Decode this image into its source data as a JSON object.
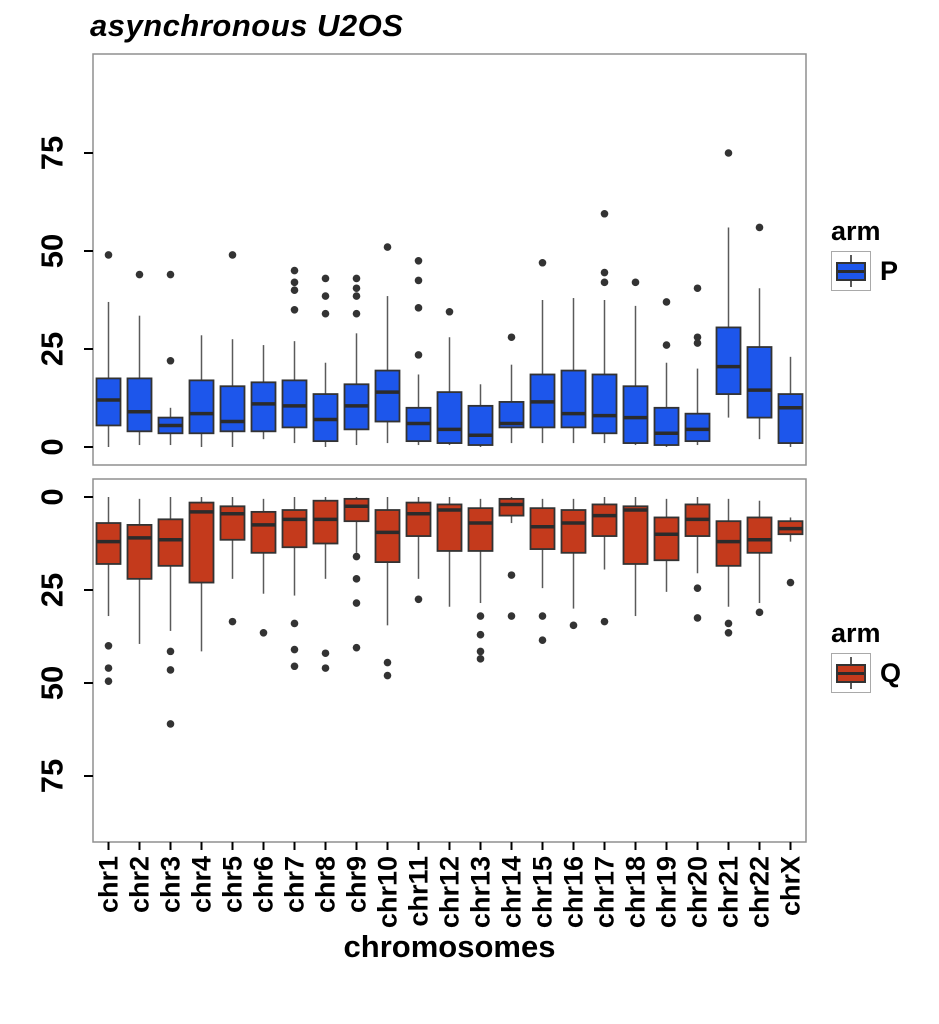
{
  "title": "asynchronous U2OS",
  "x_axis": {
    "label": "chromosomes",
    "categories": [
      "chr1",
      "chr2",
      "chr3",
      "chr4",
      "chr5",
      "chr6",
      "chr7",
      "chr8",
      "chr9",
      "chr10",
      "chr11",
      "chr12",
      "chr13",
      "chr14",
      "chr15",
      "chr16",
      "chr17",
      "chr18",
      "chr19",
      "chr20",
      "chr21",
      "chr22",
      "chrX"
    ]
  },
  "y_axis": {
    "ticks": [
      0,
      25,
      50,
      75
    ]
  },
  "colors": {
    "p_fill": "#1d56eb",
    "q_fill": "#c43a1c",
    "box_border": "#333333",
    "median": "#2b2b2b",
    "whisker": "#5a5a5a",
    "outlier": "#333333",
    "panel_border": "#8f8f8f",
    "tick": "#000000",
    "text": "#000000"
  },
  "legends": [
    {
      "title": "arm",
      "label": "P",
      "color_ref": "p_fill"
    },
    {
      "title": "arm",
      "label": "Q",
      "color_ref": "q_fill"
    }
  ],
  "chart_data": [
    {
      "type": "boxplot",
      "name": "P arm (top panel)",
      "arm": "P",
      "inverted": false,
      "y_ticks": [
        0,
        25,
        50,
        75
      ],
      "y_range": [
        -5,
        100
      ],
      "boxes": [
        {
          "cat": "chr1",
          "whislo": 0,
          "q1": 5.5,
          "med": 12,
          "q3": 17.5,
          "whishi": 37,
          "outliers": [
            49
          ]
        },
        {
          "cat": "chr2",
          "whislo": 0.5,
          "q1": 4,
          "med": 9,
          "q3": 17.5,
          "whishi": 33.5,
          "outliers": [
            44
          ]
        },
        {
          "cat": "chr3",
          "whislo": 0.5,
          "q1": 3.5,
          "med": 5.5,
          "q3": 7.5,
          "whishi": 10,
          "outliers": [
            22,
            44
          ]
        },
        {
          "cat": "chr4",
          "whislo": 0,
          "q1": 3.5,
          "med": 8.5,
          "q3": 17,
          "whishi": 28.5,
          "outliers": []
        },
        {
          "cat": "chr5",
          "whislo": 0,
          "q1": 4,
          "med": 6.5,
          "q3": 15.5,
          "whishi": 27.5,
          "outliers": [
            49
          ]
        },
        {
          "cat": "chr6",
          "whislo": 2,
          "q1": 4,
          "med": 11,
          "q3": 16.5,
          "whishi": 26,
          "outliers": []
        },
        {
          "cat": "chr7",
          "whislo": 1,
          "q1": 5,
          "med": 10.5,
          "q3": 17,
          "whishi": 27,
          "outliers": [
            35,
            40,
            42,
            45
          ]
        },
        {
          "cat": "chr8",
          "whislo": 0,
          "q1": 1.5,
          "med": 7,
          "q3": 13.5,
          "whishi": 21.5,
          "outliers": [
            34,
            38.5,
            43
          ]
        },
        {
          "cat": "chr9",
          "whislo": 0.5,
          "q1": 4.5,
          "med": 10.5,
          "q3": 16,
          "whishi": 29,
          "outliers": [
            34,
            38.5,
            40.5,
            43
          ]
        },
        {
          "cat": "chr10",
          "whislo": 1,
          "q1": 6.5,
          "med": 14,
          "q3": 19.5,
          "whishi": 38.5,
          "outliers": [
            51
          ]
        },
        {
          "cat": "chr11",
          "whislo": 0.5,
          "q1": 1.5,
          "med": 6,
          "q3": 10,
          "whishi": 18.5,
          "outliers": [
            23.5,
            35.5,
            42.5,
            47.5
          ]
        },
        {
          "cat": "chr12",
          "whislo": 0.5,
          "q1": 1,
          "med": 4.5,
          "q3": 14,
          "whishi": 28,
          "outliers": [
            34.5
          ]
        },
        {
          "cat": "chr13",
          "whislo": 0,
          "q1": 0.5,
          "med": 3,
          "q3": 10.5,
          "whishi": 16,
          "outliers": []
        },
        {
          "cat": "chr14",
          "whislo": 1,
          "q1": 5,
          "med": 6,
          "q3": 11.5,
          "whishi": 21,
          "outliers": [
            28
          ]
        },
        {
          "cat": "chr15",
          "whislo": 1,
          "q1": 5,
          "med": 11.5,
          "q3": 18.5,
          "whishi": 37.5,
          "outliers": [
            47
          ]
        },
        {
          "cat": "chr16",
          "whislo": 1,
          "q1": 5,
          "med": 8.5,
          "q3": 19.5,
          "whishi": 38,
          "outliers": []
        },
        {
          "cat": "chr17",
          "whislo": 1,
          "q1": 3.5,
          "med": 8,
          "q3": 18.5,
          "whishi": 37.5,
          "outliers": [
            42,
            44.5,
            59.5
          ]
        },
        {
          "cat": "chr18",
          "whislo": 0.5,
          "q1": 1,
          "med": 7.5,
          "q3": 15.5,
          "whishi": 36,
          "outliers": [
            42
          ]
        },
        {
          "cat": "chr19",
          "whislo": 0,
          "q1": 0.5,
          "med": 3.5,
          "q3": 10,
          "whishi": 21.5,
          "outliers": [
            26,
            37
          ]
        },
        {
          "cat": "chr20",
          "whislo": 0.5,
          "q1": 1.5,
          "med": 4.5,
          "q3": 8.5,
          "whishi": 20,
          "outliers": [
            26.5,
            28,
            40.5
          ]
        },
        {
          "cat": "chr21",
          "whislo": 7.5,
          "q1": 13.5,
          "med": 20.5,
          "q3": 30.5,
          "whishi": 56,
          "outliers": [
            75
          ]
        },
        {
          "cat": "chr22",
          "whislo": 2,
          "q1": 7.5,
          "med": 14.5,
          "q3": 25.5,
          "whishi": 40.5,
          "outliers": [
            56
          ]
        },
        {
          "cat": "chrX",
          "whislo": 0,
          "q1": 1,
          "med": 10,
          "q3": 13.5,
          "whishi": 23,
          "outliers": []
        }
      ]
    },
    {
      "type": "boxplot",
      "name": "Q arm (bottom panel)",
      "arm": "Q",
      "inverted": true,
      "y_ticks": [
        0,
        25,
        50,
        75
      ],
      "y_range": [
        -5,
        93
      ],
      "boxes": [
        {
          "cat": "chr1",
          "whislo": 0,
          "q1": 7,
          "med": 12,
          "q3": 18,
          "whishi": 32,
          "outliers": [
            40,
            46,
            49.5
          ]
        },
        {
          "cat": "chr2",
          "whislo": 0.5,
          "q1": 7.5,
          "med": 11,
          "q3": 22,
          "whishi": 39.5,
          "outliers": []
        },
        {
          "cat": "chr3",
          "whislo": 0,
          "q1": 6,
          "med": 11.5,
          "q3": 18.5,
          "whishi": 36,
          "outliers": [
            41.5,
            46.5,
            61
          ]
        },
        {
          "cat": "chr4",
          "whislo": 0,
          "q1": 1.5,
          "med": 4,
          "q3": 23,
          "whishi": 41.5,
          "outliers": []
        },
        {
          "cat": "chr5",
          "whislo": 0,
          "q1": 2.5,
          "med": 4.5,
          "q3": 11.5,
          "whishi": 22,
          "outliers": [
            33.5
          ]
        },
        {
          "cat": "chr6",
          "whislo": 0.5,
          "q1": 4,
          "med": 7.5,
          "q3": 15,
          "whishi": 26,
          "outliers": [
            36.5
          ]
        },
        {
          "cat": "chr7",
          "whislo": 0,
          "q1": 3.5,
          "med": 6,
          "q3": 13.5,
          "whishi": 26.5,
          "outliers": [
            34,
            41,
            45.5
          ]
        },
        {
          "cat": "chr8",
          "whislo": 0,
          "q1": 1,
          "med": 6,
          "q3": 12.5,
          "whishi": 22,
          "outliers": [
            42,
            46
          ]
        },
        {
          "cat": "chr9",
          "whislo": 0,
          "q1": 0.5,
          "med": 2.5,
          "q3": 6.5,
          "whishi": 15,
          "outliers": [
            16,
            22,
            28.5,
            40.5
          ]
        },
        {
          "cat": "chr10",
          "whislo": 0,
          "q1": 3.5,
          "med": 9.5,
          "q3": 17.5,
          "whishi": 34.5,
          "outliers": [
            44.5,
            48
          ]
        },
        {
          "cat": "chr11",
          "whislo": 0,
          "q1": 1.5,
          "med": 4.5,
          "q3": 10.5,
          "whishi": 22,
          "outliers": [
            27.5
          ]
        },
        {
          "cat": "chr12",
          "whislo": 0,
          "q1": 2,
          "med": 3.5,
          "q3": 14.5,
          "whishi": 29.5,
          "outliers": []
        },
        {
          "cat": "chr13",
          "whislo": 0.5,
          "q1": 3,
          "med": 7,
          "q3": 14.5,
          "whishi": 28.5,
          "outliers": [
            32,
            37,
            41.5,
            43.5
          ]
        },
        {
          "cat": "chr14",
          "whislo": 0,
          "q1": 0.5,
          "med": 2,
          "q3": 5,
          "whishi": 7,
          "outliers": [
            21,
            32
          ]
        },
        {
          "cat": "chr15",
          "whislo": 0.5,
          "q1": 3,
          "med": 8,
          "q3": 14,
          "whishi": 24.5,
          "outliers": [
            32,
            38.5
          ]
        },
        {
          "cat": "chr16",
          "whislo": 0.5,
          "q1": 3.5,
          "med": 7,
          "q3": 15,
          "whishi": 30,
          "outliers": [
            34.5
          ]
        },
        {
          "cat": "chr17",
          "whislo": 0,
          "q1": 2,
          "med": 5,
          "q3": 10.5,
          "whishi": 19.5,
          "outliers": [
            33.5
          ]
        },
        {
          "cat": "chr18",
          "whislo": 0,
          "q1": 2.5,
          "med": 3.5,
          "q3": 18,
          "whishi": 32,
          "outliers": []
        },
        {
          "cat": "chr19",
          "whislo": 0.5,
          "q1": 5.5,
          "med": 10,
          "q3": 17,
          "whishi": 25.5,
          "outliers": []
        },
        {
          "cat": "chr20",
          "whislo": 0,
          "q1": 2,
          "med": 6,
          "q3": 10.5,
          "whishi": 20.5,
          "outliers": [
            24.5,
            32.5
          ]
        },
        {
          "cat": "chr21",
          "whislo": 0.5,
          "q1": 6.5,
          "med": 12,
          "q3": 18.5,
          "whishi": 29.5,
          "outliers": [
            34,
            36.5
          ]
        },
        {
          "cat": "chr22",
          "whislo": 1,
          "q1": 5.5,
          "med": 11.5,
          "q3": 15,
          "whishi": 28.5,
          "outliers": [
            31
          ]
        },
        {
          "cat": "chrX",
          "whislo": 5.5,
          "q1": 6.5,
          "med": 8.5,
          "q3": 10,
          "whishi": 12,
          "outliers": [
            23
          ]
        }
      ]
    }
  ]
}
